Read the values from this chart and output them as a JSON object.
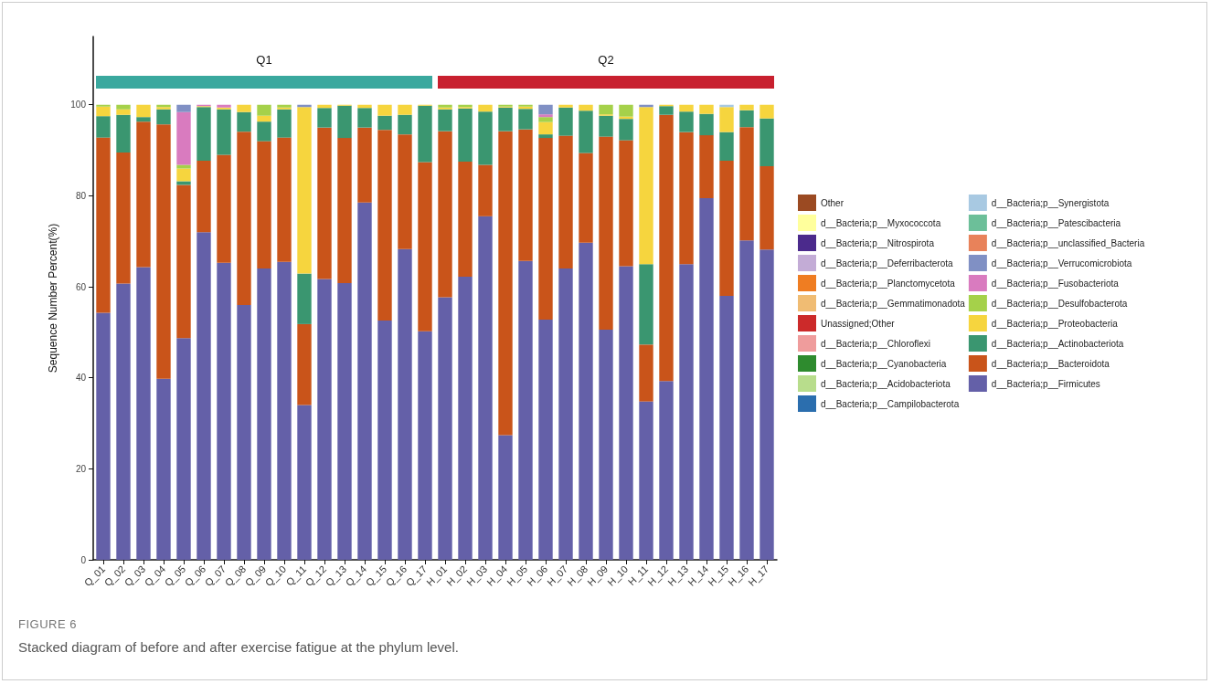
{
  "chart_data": {
    "type": "bar",
    "stacked": true,
    "ylabel": "Sequence Number Percent(%)",
    "categories": [
      "Q_01",
      "Q_02",
      "Q_03",
      "Q_04",
      "Q_05",
      "Q_06",
      "Q_07",
      "Q_08",
      "Q_09",
      "Q_10",
      "Q_11",
      "Q_12",
      "Q_13",
      "Q_14",
      "Q_15",
      "Q_16",
      "Q_17",
      "H_01",
      "H_02",
      "H_03",
      "H_04",
      "H_05",
      "H_06",
      "H_07",
      "H_08",
      "H_09",
      "H_10",
      "H_11",
      "H_12",
      "H_13",
      "H_14",
      "H_15",
      "H_16",
      "H_17"
    ],
    "series": [
      {
        "name": "d__Bacteria;p__Firmicutes",
        "color": "#6460a8",
        "values": [
          54.3,
          60.7,
          64.3,
          39.8,
          48.7,
          72.0,
          65.3,
          56.0,
          64.0,
          65.5,
          34.0,
          61.7,
          60.8,
          78.5,
          52.6,
          68.3,
          50.2,
          57.7,
          62.2,
          75.5,
          27.4,
          65.7,
          52.8,
          64.0,
          69.7,
          50.6,
          64.5,
          34.8,
          39.3,
          65.0,
          79.5,
          58.0,
          70.2,
          68.2
        ]
      },
      {
        "name": "d__Bacteria;p__Bacteroidota",
        "color": "#c9541a",
        "values": [
          38.5,
          28.8,
          32.0,
          55.9,
          33.7,
          15.7,
          23.7,
          38.1,
          28.0,
          27.3,
          17.8,
          33.3,
          31.9,
          16.5,
          41.9,
          25.2,
          37.2,
          36.5,
          25.3,
          11.3,
          66.8,
          28.9,
          39.9,
          29.2,
          19.7,
          42.4,
          27.7,
          12.5,
          58.5,
          29.0,
          13.8,
          29.7,
          24.9,
          18.3
        ]
      },
      {
        "name": "d__Bacteria;p__Actinobacteriota",
        "color": "#3a9670",
        "values": [
          4.7,
          8.3,
          1.0,
          3.3,
          0.8,
          11.8,
          10.0,
          4.3,
          4.3,
          6.2,
          11.1,
          4.3,
          7.1,
          4.3,
          3.1,
          4.3,
          12.4,
          4.8,
          11.7,
          11.7,
          5.2,
          4.5,
          0.8,
          6.2,
          9.3,
          4.6,
          4.7,
          17.7,
          1.9,
          4.5,
          4.7,
          6.3,
          3.7,
          10.5
        ]
      },
      {
        "name": "d__Bacteria;p__Proteobacteria",
        "color": "#f6d53e",
        "values": [
          2.1,
          1.2,
          2.7,
          0.5,
          2.8,
          0.2,
          0.4,
          1.6,
          1.3,
          0.4,
          36.6,
          0.7,
          0.2,
          0.7,
          2.4,
          2.2,
          0.2,
          0.4,
          0.3,
          1.5,
          0.2,
          0.5,
          2.7,
          0.6,
          1.3,
          0.3,
          0.5,
          34.5,
          0.3,
          1.5,
          2.0,
          5.5,
          1.2,
          3.0
        ]
      },
      {
        "name": "d__Bacteria;p__Desulfobacterota",
        "color": "#a5d14a",
        "values": [
          0.4,
          1.0,
          null,
          0.5,
          0.8,
          null,
          null,
          null,
          2.4,
          0.6,
          null,
          null,
          null,
          null,
          null,
          null,
          null,
          0.6,
          0.5,
          null,
          0.4,
          0.4,
          1.1,
          null,
          null,
          2.1,
          2.6,
          null,
          null,
          null,
          null,
          null,
          null,
          null
        ]
      },
      {
        "name": "d__Bacteria;p__Fusobacteriota",
        "color": "#d97bbf",
        "values": [
          null,
          null,
          null,
          null,
          11.6,
          0.3,
          0.6,
          null,
          null,
          null,
          null,
          null,
          null,
          null,
          null,
          null,
          null,
          null,
          null,
          null,
          null,
          null,
          0.6,
          null,
          null,
          null,
          null,
          null,
          null,
          null,
          null,
          null,
          null,
          null
        ]
      },
      {
        "name": "d__Bacteria;p__Verrucomicrobiota",
        "color": "#8090c4",
        "values": [
          null,
          null,
          null,
          null,
          1.6,
          null,
          null,
          null,
          null,
          null,
          0.5,
          null,
          null,
          null,
          null,
          null,
          null,
          null,
          null,
          null,
          null,
          null,
          2.1,
          null,
          null,
          null,
          null,
          0.5,
          null,
          null,
          null,
          null,
          null,
          null
        ]
      },
      {
        "name": "d__Bacteria;p__unclassified_Bacteria",
        "color": "#e8825a",
        "values": [
          null,
          null,
          null,
          null,
          null,
          null,
          null,
          null,
          null,
          null,
          null,
          null,
          null,
          null,
          null,
          null,
          null,
          null,
          null,
          null,
          null,
          null,
          null,
          null,
          null,
          null,
          null,
          null,
          null,
          null,
          null,
          null,
          null,
          null
        ]
      },
      {
        "name": "d__Bacteria;p__Patescibacteria",
        "color": "#6cbf99",
        "values": [
          null,
          null,
          null,
          null,
          null,
          null,
          null,
          null,
          null,
          null,
          null,
          null,
          null,
          null,
          null,
          null,
          null,
          null,
          null,
          null,
          null,
          null,
          null,
          null,
          null,
          null,
          null,
          null,
          null,
          null,
          null,
          null,
          null,
          null
        ]
      },
      {
        "name": "d__Bacteria;p__Synergistota",
        "color": "#a8c9e2",
        "values": [
          null,
          null,
          null,
          null,
          null,
          null,
          null,
          null,
          null,
          null,
          null,
          null,
          null,
          null,
          null,
          null,
          null,
          null,
          null,
          null,
          null,
          null,
          null,
          null,
          null,
          null,
          null,
          null,
          null,
          null,
          null,
          0.5,
          null,
          null
        ]
      },
      {
        "name": "d__Bacteria;p__Campilobacterota",
        "color": "#2b6eae",
        "values": [
          null,
          null,
          null,
          null,
          null,
          null,
          null,
          null,
          null,
          null,
          null,
          null,
          null,
          null,
          null,
          null,
          null,
          null,
          null,
          null,
          null,
          null,
          null,
          null,
          null,
          null,
          null,
          null,
          null,
          null,
          null,
          null,
          null,
          null
        ]
      },
      {
        "name": "d__Bacteria;p__Acidobacteriota",
        "color": "#b8dd8c",
        "values": [
          null,
          null,
          null,
          null,
          null,
          null,
          null,
          null,
          null,
          null,
          null,
          null,
          null,
          null,
          null,
          null,
          null,
          null,
          null,
          null,
          null,
          null,
          null,
          null,
          null,
          null,
          null,
          null,
          null,
          null,
          null,
          null,
          null,
          null
        ]
      },
      {
        "name": "d__Bacteria;p__Cyanobacteria",
        "color": "#2e8b2e",
        "values": [
          null,
          null,
          null,
          null,
          null,
          null,
          null,
          null,
          null,
          null,
          null,
          null,
          null,
          null,
          null,
          null,
          null,
          null,
          null,
          null,
          null,
          null,
          null,
          null,
          null,
          null,
          null,
          null,
          null,
          null,
          null,
          null,
          null,
          null
        ]
      },
      {
        "name": "d__Bacteria;p__Chloroflexi",
        "color": "#ef9c9c",
        "values": [
          null,
          null,
          null,
          null,
          null,
          null,
          null,
          null,
          null,
          null,
          null,
          null,
          null,
          null,
          null,
          null,
          null,
          null,
          null,
          null,
          null,
          null,
          null,
          null,
          null,
          null,
          null,
          null,
          null,
          null,
          null,
          null,
          null,
          null
        ]
      },
      {
        "name": "Unassigned;Other",
        "color": "#cc2a2a",
        "values": [
          null,
          null,
          null,
          null,
          null,
          null,
          null,
          null,
          null,
          null,
          null,
          null,
          null,
          null,
          null,
          null,
          null,
          null,
          null,
          null,
          null,
          null,
          null,
          null,
          null,
          null,
          null,
          null,
          null,
          null,
          null,
          null,
          null,
          null
        ]
      },
      {
        "name": "d__Bacteria;p__Gemmatimonadota",
        "color": "#f0bc73",
        "values": [
          null,
          null,
          null,
          null,
          null,
          null,
          null,
          null,
          null,
          null,
          null,
          null,
          null,
          null,
          null,
          null,
          null,
          null,
          null,
          null,
          null,
          null,
          null,
          null,
          null,
          null,
          null,
          null,
          null,
          null,
          null,
          null,
          null,
          null
        ]
      },
      {
        "name": "d__Bacteria;p__Planctomycetota",
        "color": "#ef7d22",
        "values": [
          null,
          null,
          null,
          null,
          null,
          null,
          null,
          null,
          null,
          null,
          null,
          null,
          null,
          null,
          null,
          null,
          null,
          null,
          null,
          null,
          null,
          null,
          null,
          null,
          null,
          null,
          null,
          null,
          null,
          null,
          null,
          null,
          null,
          null
        ]
      },
      {
        "name": "d__Bacteria;p__Deferribacterota",
        "color": "#c3acd6",
        "values": [
          null,
          null,
          null,
          null,
          null,
          null,
          null,
          null,
          null,
          null,
          null,
          null,
          null,
          null,
          null,
          null,
          null,
          null,
          null,
          null,
          null,
          null,
          null,
          null,
          null,
          null,
          null,
          null,
          null,
          null,
          null,
          null,
          null,
          null
        ]
      },
      {
        "name": "d__Bacteria;p__Nitrospirota",
        "color": "#4b2a8c",
        "values": [
          null,
          null,
          null,
          null,
          null,
          null,
          null,
          null,
          null,
          null,
          null,
          null,
          null,
          null,
          null,
          null,
          null,
          null,
          null,
          null,
          null,
          null,
          null,
          null,
          null,
          null,
          null,
          null,
          null,
          null,
          null,
          null,
          null,
          null
        ]
      },
      {
        "name": "d__Bacteria;p__Myxococcota",
        "color": "#ffff9c",
        "values": [
          null,
          null,
          null,
          null,
          null,
          null,
          null,
          null,
          null,
          null,
          null,
          null,
          null,
          null,
          null,
          null,
          null,
          null,
          null,
          null,
          null,
          null,
          null,
          null,
          null,
          null,
          null,
          null,
          null,
          null,
          null,
          null,
          null,
          null
        ]
      },
      {
        "name": "Other",
        "color": "#9b4a22",
        "values": [
          null,
          null,
          null,
          null,
          null,
          null,
          null,
          null,
          null,
          null,
          null,
          null,
          null,
          null,
          null,
          null,
          null,
          null,
          null,
          null,
          null,
          null,
          null,
          null,
          null,
          null,
          null,
          null,
          null,
          null,
          null,
          null,
          null,
          null
        ]
      }
    ],
    "ylim": [
      0,
      115
    ],
    "yticks": [
      0,
      20,
      40,
      60,
      80,
      100
    ],
    "grid": false,
    "legend": "right",
    "annotations": [
      "Q1",
      "Q2",
      "FIGURE 6",
      "Stacked diagram of before and after exercise fatigue at the phylum level."
    ]
  }
}
